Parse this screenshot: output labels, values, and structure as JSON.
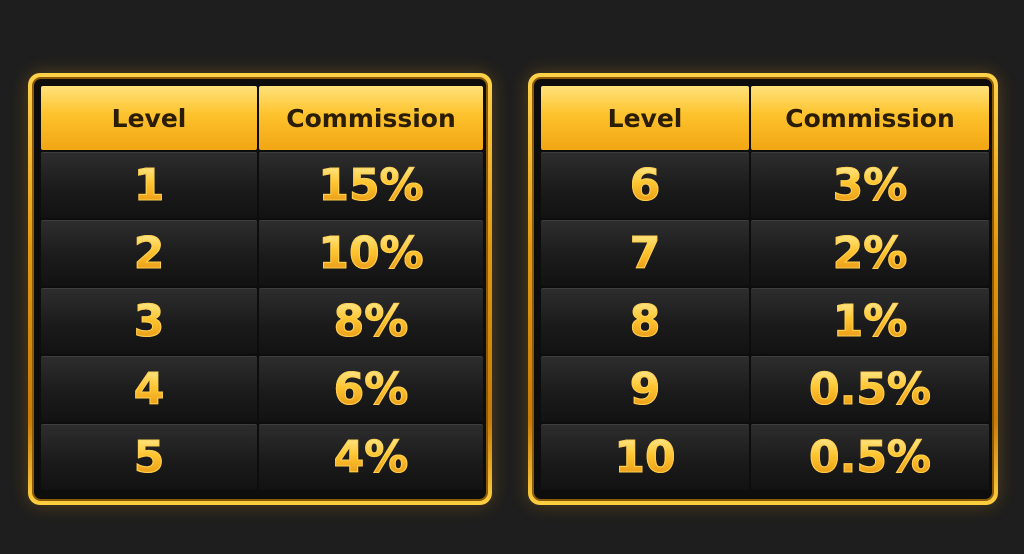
{
  "tables": [
    {
      "header": [
        "Level",
        "Commission"
      ],
      "rows": [
        [
          "1",
          "15%"
        ],
        [
          "2",
          "10%"
        ],
        [
          "3",
          "8%"
        ],
        [
          "4",
          "6%"
        ],
        [
          "5",
          "4%"
        ]
      ]
    },
    {
      "header": [
        "Level",
        "Commission"
      ],
      "rows": [
        [
          "6",
          "3%"
        ],
        [
          "7",
          "2%"
        ],
        [
          "8",
          "1%"
        ],
        [
          "9",
          "0.5%"
        ],
        [
          "10",
          "0.5%"
        ]
      ]
    }
  ]
}
